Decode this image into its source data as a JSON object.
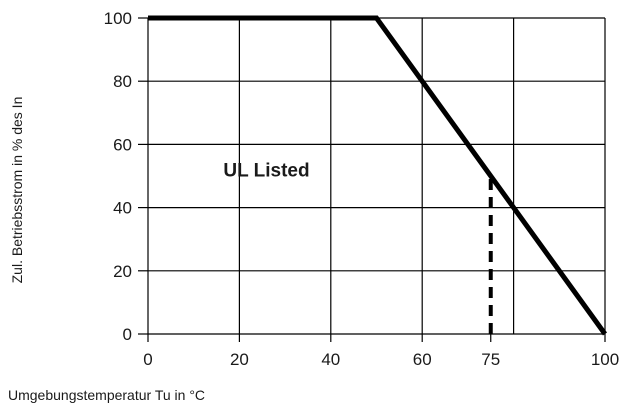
{
  "chart_data": {
    "type": "line",
    "xlabel": "Umgebungstemperatur Tu in °C",
    "ylabel": "Zul. Betriebsstrom in % des In",
    "xlim": [
      0,
      100
    ],
    "ylim": [
      0,
      100
    ],
    "x_ticks": [
      0,
      20,
      40,
      60,
      75,
      100
    ],
    "y_ticks": [
      0,
      20,
      40,
      60,
      80,
      100
    ],
    "x_gridlines": [
      0,
      20,
      40,
      60,
      80,
      100
    ],
    "y_gridlines": [
      0,
      20,
      40,
      60,
      80,
      100
    ],
    "grid": true,
    "series": [
      {
        "style": "solid",
        "color": "#000000",
        "points": [
          [
            0,
            100
          ],
          [
            50,
            100
          ],
          [
            100,
            0
          ]
        ]
      },
      {
        "style": "dashed",
        "color": "#000000",
        "points": [
          [
            75,
            0
          ],
          [
            75,
            50
          ]
        ]
      }
    ],
    "annotations": [
      {
        "text": "UL Listed",
        "x": 16.5,
        "y": 52
      }
    ]
  }
}
